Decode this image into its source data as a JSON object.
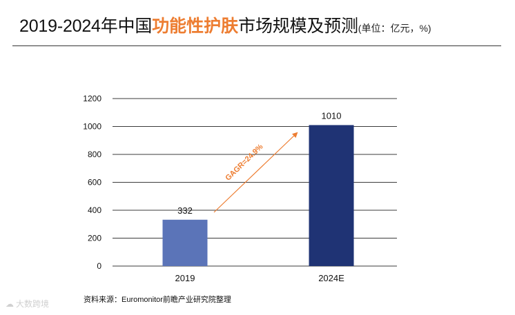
{
  "title": {
    "prefix": "2019-2024年中国",
    "highlight": "功能性护肤",
    "suffix": "市场规模及预测",
    "unit": "(单位：亿元，%)"
  },
  "colors": {
    "accent": "#ed7d31",
    "bar_2019": "#5b74b8",
    "bar_2024": "#1f3374",
    "gridline": "#3a3a3a"
  },
  "chart_data": {
    "type": "bar",
    "categories": [
      "2019",
      "2024E"
    ],
    "values": [
      332,
      1010
    ],
    "data_labels": [
      "332",
      "1010"
    ],
    "ylim": [
      0,
      1200
    ],
    "yticks": [
      0,
      200,
      400,
      600,
      800,
      1000,
      1200
    ],
    "grid": true,
    "xlabel": "",
    "ylabel": "",
    "annotation": "GAGR=24.9%"
  },
  "source": "资料来源：Euromonitor前瞻产业研究院整理",
  "watermark": {
    "icon": "cloud-logo-icon",
    "text": "大数跨境"
  }
}
